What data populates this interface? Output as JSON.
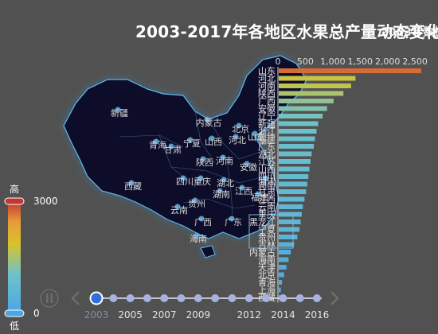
{
  "title": "2003-2017年各地区水果总产量动态变化",
  "subtitle": "2003年数据",
  "visual_map": {
    "max_label": "3000",
    "min_label": "0",
    "high_text": "高",
    "low_text": "低",
    "colors": [
      "#4aa6e6",
      "#6fc2c8",
      "#d8c32a",
      "#e89a3a",
      "#c23531"
    ]
  },
  "timeline": {
    "years": [
      "2003",
      "2004",
      "2005",
      "2006",
      "2007",
      "2008",
      "2009",
      "2010",
      "2011",
      "2012",
      "2013",
      "2014",
      "2015",
      "2016"
    ],
    "labels_shown": [
      "2003",
      "2005",
      "2007",
      "2009",
      "2012",
      "2014",
      "2016"
    ],
    "current": "2003",
    "pause_icon": "pause-icon",
    "prev_icon": "chevron-left-icon",
    "next_icon": "chevron-right-icon"
  },
  "map_labels": {
    "xinjiang": "新疆",
    "xizang": "西藏",
    "neimenggu": "内蒙古",
    "gansu": "甘肃",
    "ningxia": "宁夏",
    "qinghai": "青海",
    "shanxi": "山西",
    "shaanxi": "陕西",
    "henan": "河南",
    "sichuan": "四川",
    "chongqing": "重庆",
    "hubei": "湖北",
    "hunan": "湖南",
    "guizhou": "贵州",
    "yunnan": "云南",
    "guangxi": "广西",
    "guangdong": "广东",
    "hainan": "海南",
    "beijing": "北京",
    "hebei": "河北",
    "shandong": "山东",
    "anhui": "安徽",
    "jiangxi": "江西",
    "fujian": "福建",
    "zhejiang": "浙江"
  },
  "chart_data": {
    "type": "bar",
    "orientation": "horizontal",
    "x_ticks": [
      "0",
      "500",
      "1,000",
      "1,500",
      "2,000",
      "2,500"
    ],
    "xlim": [
      0,
      2600
    ],
    "categories": [
      "山东",
      "河北",
      "河南",
      "陕西",
      "广西",
      "安徽",
      "辽宁",
      "新疆",
      "浙江",
      "福建",
      "广东",
      "湖北",
      "江苏",
      "山西",
      "四川",
      "湖南",
      "甘肃",
      "江西",
      "云南",
      "重庆",
      "黑龙江",
      "宁夏",
      "贵州",
      "吉林",
      "内蒙古",
      "海南",
      "天津",
      "北京",
      "青海",
      "上海",
      "西藏"
    ],
    "values": [
      2600,
      1400,
      1320,
      1180,
      1000,
      880,
      800,
      720,
      690,
      660,
      640,
      600,
      580,
      560,
      540,
      520,
      500,
      470,
      440,
      420,
      400,
      380,
      340,
      280,
      220,
      180,
      140,
      100,
      60,
      40,
      10
    ]
  }
}
